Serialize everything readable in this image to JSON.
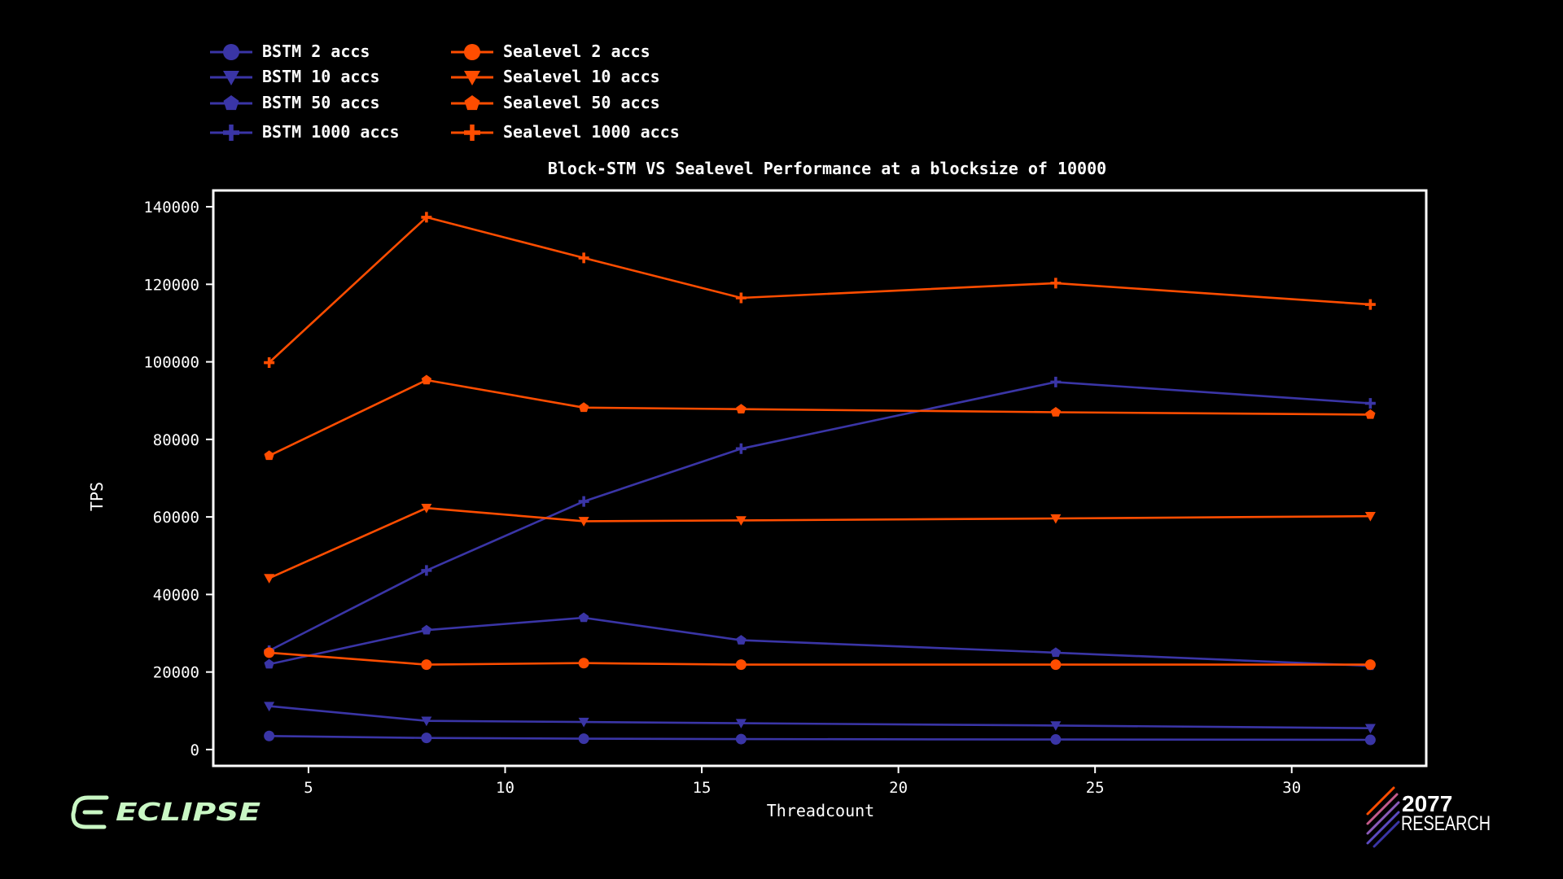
{
  "chart_data": {
    "type": "line",
    "title": "Block-STM VS Sealevel Performance at a blocksize of 10000",
    "xlabel": "Threadcount",
    "ylabel": "TPS",
    "xlim": [
      2.6,
      33.4
    ],
    "ylim": [
      -4000,
      144000
    ],
    "xticks": [
      5,
      10,
      15,
      20,
      25,
      30
    ],
    "yticks": [
      0,
      20000,
      40000,
      60000,
      80000,
      100000,
      120000,
      140000
    ],
    "grid": false,
    "legend_position": "top-left, above plot, two columns",
    "x": [
      4,
      8,
      12,
      16,
      24,
      32
    ],
    "series": [
      {
        "name": "BSTM 2 accs",
        "marker": "circle",
        "color": "#3a35a6",
        "values": [
          3500,
          3000,
          2800,
          2700,
          2600,
          2500
        ]
      },
      {
        "name": "BSTM 10 accs",
        "marker": "triangle-down",
        "color": "#3a35a6",
        "values": [
          11200,
          7400,
          7100,
          6800,
          6200,
          5500
        ]
      },
      {
        "name": "BSTM 50 accs",
        "marker": "pentagon",
        "color": "#3a35a6",
        "values": [
          22000,
          30800,
          34000,
          28200,
          25000,
          21600
        ]
      },
      {
        "name": "BSTM 1000 accs",
        "marker": "plus",
        "color": "#3a35a6",
        "values": [
          25500,
          46200,
          64000,
          77600,
          94800,
          89300
        ]
      },
      {
        "name": "Sealevel 2 accs",
        "marker": "circle",
        "color": "#ff4d00",
        "values": [
          25000,
          21900,
          22300,
          21900,
          21900,
          21900
        ]
      },
      {
        "name": "Sealevel 10 accs",
        "marker": "triangle-down",
        "color": "#ff4d00",
        "values": [
          44200,
          62300,
          58900,
          59100,
          59600,
          60200
        ]
      },
      {
        "name": "Sealevel 50 accs",
        "marker": "pentagon",
        "color": "#ff4d00",
        "values": [
          75800,
          95300,
          88200,
          87800,
          87000,
          86400
        ]
      },
      {
        "name": "Sealevel 1000 accs",
        "marker": "plus",
        "color": "#ff4d00",
        "values": [
          99800,
          137300,
          126800,
          116500,
          120300,
          114800
        ]
      }
    ]
  },
  "logos": {
    "eclipse": {
      "name": "ECLIPSE",
      "color": "#c9f7c4"
    },
    "research": {
      "line1": "2077",
      "line2": "RESEARCH",
      "stripe_colors": [
        "#ff4d00",
        "#3a35a6"
      ]
    }
  },
  "colors": {
    "background": "#000000",
    "foreground": "#ffffff",
    "bstm": "#3a35a6",
    "sealevel": "#ff4d00"
  }
}
